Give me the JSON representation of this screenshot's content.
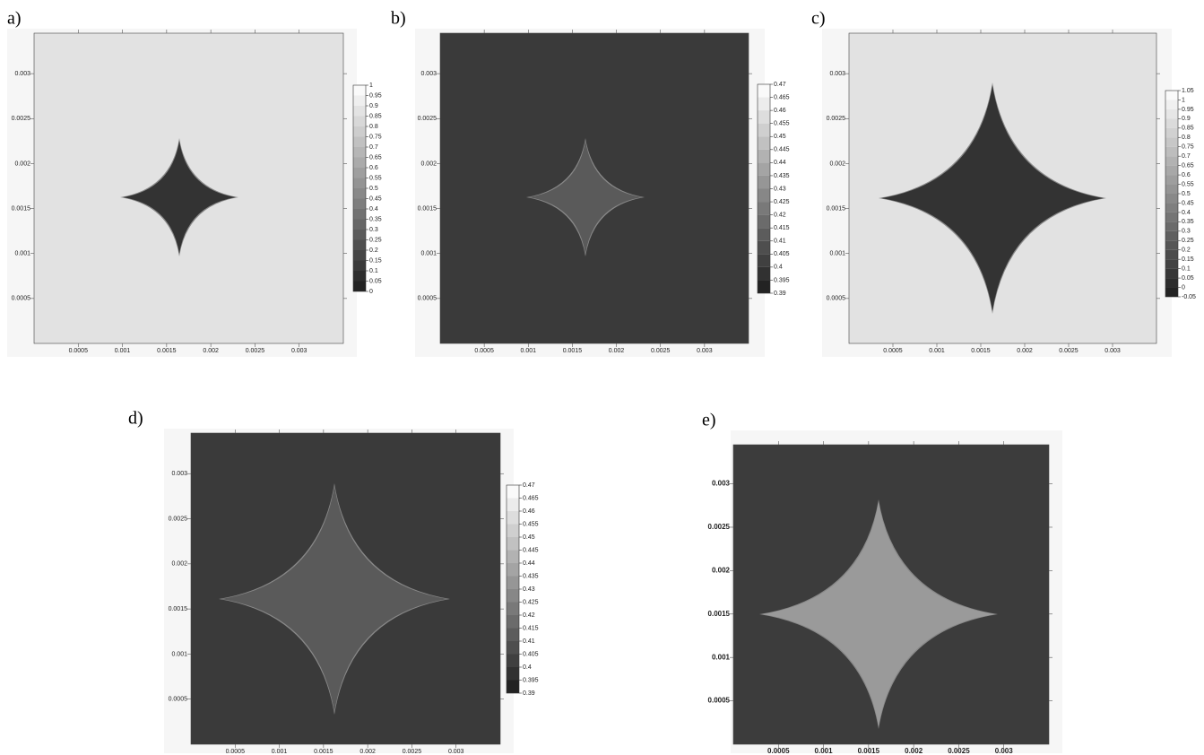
{
  "panels": [
    {
      "label": "a)",
      "xlim": [
        0,
        0.0035
      ],
      "ylim": [
        0,
        0.00345
      ],
      "xticks": [
        0.0005,
        0.001,
        0.0015,
        0.002,
        0.0025,
        0.003
      ],
      "yticks": [
        0.003,
        0.0025,
        0.002,
        0.0015,
        0.001,
        0.0005
      ],
      "plot_color": "#e2e2e2",
      "shape_color": "#333333",
      "colorbar": [
        1,
        0.95,
        0.9,
        0.85,
        0.8,
        0.75,
        0.7,
        0.65,
        0.6,
        0.55,
        0.5,
        0.45,
        0.4,
        0.35,
        0.3,
        0.25,
        0.2,
        0.15,
        0.1,
        0.05,
        0
      ]
    },
    {
      "label": "b)",
      "xlim": [
        0,
        0.0035
      ],
      "ylim": [
        0,
        0.00345
      ],
      "xticks": [
        0.0005,
        0.001,
        0.0015,
        0.002,
        0.0025,
        0.003
      ],
      "yticks": [
        0.003,
        0.0025,
        0.002,
        0.0015,
        0.001,
        0.0005
      ],
      "plot_color": "#3a3a3a",
      "shape_color": "#5a5a5a",
      "colorbar": [
        0.47,
        0.465,
        0.46,
        0.455,
        0.45,
        0.445,
        0.44,
        0.435,
        0.43,
        0.425,
        0.42,
        0.415,
        0.41,
        0.405,
        0.4,
        0.395,
        0.39
      ]
    },
    {
      "label": "c)",
      "xlim": [
        0,
        0.0035
      ],
      "ylim": [
        0,
        0.00345
      ],
      "xticks": [
        0.0005,
        0.001,
        0.0015,
        0.002,
        0.0025,
        0.003
      ],
      "yticks": [
        0.003,
        0.0025,
        0.002,
        0.0015,
        0.001,
        0.0005
      ],
      "plot_color": "#e2e2e2",
      "shape_color": "#333333",
      "colorbar": [
        1.05,
        1,
        0.95,
        0.9,
        0.85,
        0.8,
        0.75,
        0.7,
        0.65,
        0.6,
        0.55,
        0.5,
        0.45,
        0.4,
        0.35,
        0.3,
        0.25,
        0.2,
        0.15,
        0.1,
        0.05,
        0,
        -0.05
      ]
    },
    {
      "label": "d)",
      "xlim": [
        0,
        0.0035
      ],
      "ylim": [
        0,
        0.00345
      ],
      "xticks": [
        0.0005,
        0.001,
        0.0015,
        0.002,
        0.0025,
        0.003
      ],
      "yticks": [
        0.003,
        0.0025,
        0.002,
        0.0015,
        0.001,
        0.0005
      ],
      "plot_color": "#3a3a3a",
      "shape_color": "#5a5a5a",
      "colorbar": [
        0.47,
        0.465,
        0.46,
        0.455,
        0.45,
        0.445,
        0.44,
        0.435,
        0.43,
        0.425,
        0.42,
        0.415,
        0.41,
        0.405,
        0.4,
        0.395,
        0.39
      ]
    },
    {
      "label": "e)",
      "xlim": [
        0,
        0.0035
      ],
      "ylim": [
        0,
        0.00345
      ],
      "xticks": [
        0.0005,
        0.001,
        0.0015,
        0.002,
        0.0025,
        0.003
      ],
      "yticks": [
        0.003,
        0.0025,
        0.002,
        0.0015,
        0.001,
        0.0005
      ],
      "plot_color": "#3c3c3c",
      "shape_color": "#9a9a9a"
    }
  ]
}
